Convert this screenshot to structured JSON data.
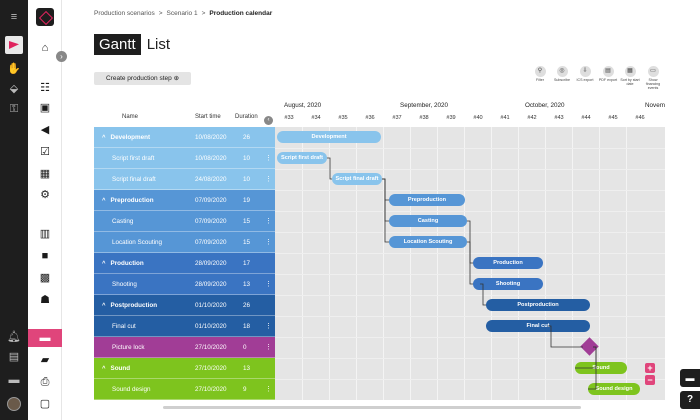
{
  "breadcrumb": [
    "Production scenarios",
    "Scenario 1",
    "Production calendar"
  ],
  "breadcrumb_sep": ">",
  "view_toggle": {
    "gantt": "Gantt",
    "list": "List"
  },
  "create_button": "Create production step",
  "create_icon": "⊕",
  "toolbar": [
    {
      "label": "Filter",
      "icon": "filter-icon",
      "glyph": "⚲"
    },
    {
      "label": "Subscribe",
      "icon": "rss-icon",
      "glyph": "◎"
    },
    {
      "label": "ICS export",
      "icon": "export-icon",
      "glyph": "⇩"
    },
    {
      "label": "PDF export",
      "icon": "pdf-icon",
      "glyph": "▤"
    },
    {
      "label": "Sort by start date",
      "icon": "calendar-sort-icon",
      "glyph": "▦"
    },
    {
      "label": "Show financing events",
      "icon": "comment-icon",
      "glyph": "▭"
    }
  ],
  "table_headers": {
    "name": "Name",
    "start": "Start time",
    "duration": "Duration"
  },
  "rows": [
    {
      "name": "Development",
      "start": "10/08/2020",
      "duration": "26",
      "group": true,
      "color": "#89c4ec"
    },
    {
      "name": "Script first draft",
      "start": "10/08/2020",
      "duration": "10",
      "group": false,
      "color": "#89c4ec"
    },
    {
      "name": "Script final draft",
      "start": "24/08/2020",
      "duration": "10",
      "group": false,
      "color": "#89c4ec"
    },
    {
      "name": "Preproduction",
      "start": "07/09/2020",
      "duration": "19",
      "group": true,
      "color": "#5696d6"
    },
    {
      "name": "Casting",
      "start": "07/09/2020",
      "duration": "15",
      "group": false,
      "color": "#5696d6"
    },
    {
      "name": "Location Scouting",
      "start": "07/09/2020",
      "duration": "15",
      "group": false,
      "color": "#5696d6"
    },
    {
      "name": "Production",
      "start": "28/09/2020",
      "duration": "17",
      "group": true,
      "color": "#3a74c2"
    },
    {
      "name": "Shooting",
      "start": "28/09/2020",
      "duration": "13",
      "group": false,
      "color": "#3a74c2"
    },
    {
      "name": "Postproduction",
      "start": "01/10/2020",
      "duration": "26",
      "group": true,
      "color": "#245ea3"
    },
    {
      "name": "Final cut",
      "start": "01/10/2020",
      "duration": "18",
      "group": false,
      "color": "#245ea3"
    },
    {
      "name": "Picture lock",
      "start": "27/10/2020",
      "duration": "0",
      "group": false,
      "color": "#a13d96"
    },
    {
      "name": "Sound",
      "start": "27/10/2020",
      "duration": "13",
      "group": true,
      "color": "#7ec41e"
    },
    {
      "name": "Sound design",
      "start": "27/10/2020",
      "duration": "9",
      "group": false,
      "color": "#7ec41e"
    }
  ],
  "months": [
    "August, 2020",
    "September, 2020",
    "October, 2020",
    "Novemb"
  ],
  "weeks": [
    "#33",
    "#34",
    "#35",
    "#36",
    "#37",
    "#38",
    "#39",
    "#40",
    "#41",
    "#42",
    "#43",
    "#44",
    "#45",
    "#46"
  ],
  "bars": [
    {
      "label": "Development",
      "color": "#89c4ec"
    },
    {
      "label": "Script first draft",
      "color": "#89c4ec"
    },
    {
      "label": "Script final draft",
      "color": "#89c4ec"
    },
    {
      "label": "Preproduction",
      "color": "#5696d6"
    },
    {
      "label": "Casting",
      "color": "#5696d6"
    },
    {
      "label": "Location Scouting",
      "color": "#5696d6"
    },
    {
      "label": "Production",
      "color": "#3a74c2"
    },
    {
      "label": "Shooting",
      "color": "#3a74c2"
    },
    {
      "label": "Postproduction",
      "color": "#245ea3"
    },
    {
      "label": "Final cut",
      "color": "#245ea3"
    },
    {
      "label": "",
      "color": "#a13d96"
    },
    {
      "label": "Sound",
      "color": "#7ec41e"
    },
    {
      "label": "Sound design",
      "color": "#7ec41e"
    }
  ],
  "accent": "#e0457b"
}
